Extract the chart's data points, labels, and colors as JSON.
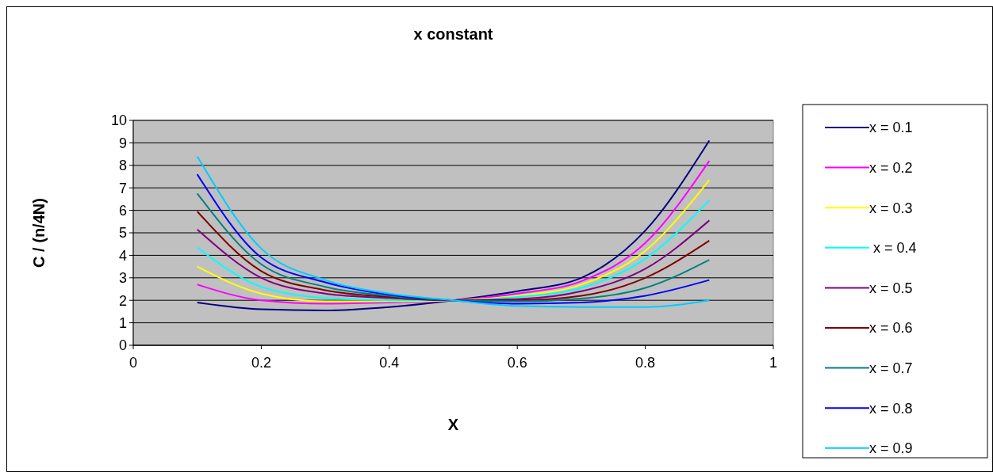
{
  "chart_data": {
    "type": "line",
    "title": "x constant",
    "xlabel": "X",
    "ylabel": "C / (n/4N)",
    "x": [
      0.1,
      0.2,
      0.3,
      0.4,
      0.5,
      0.6,
      0.7,
      0.8,
      0.9
    ],
    "xlim": [
      0,
      1
    ],
    "xticks": [
      0,
      0.2,
      0.4,
      0.6,
      0.8,
      1
    ],
    "ylim": [
      0,
      10
    ],
    "yticks": [
      0,
      1,
      2,
      3,
      4,
      5,
      6,
      7,
      8,
      9,
      10
    ],
    "grid": "y",
    "legend": "right",
    "line_style": "solid",
    "series": [
      {
        "name": "x = 0.1",
        "color": "#000080",
        "values": [
          1.9,
          1.6,
          1.55,
          1.7,
          2.0,
          2.4,
          3.0,
          5.1,
          9.1
        ]
      },
      {
        "name": "x = 0.2",
        "color": "#ff00ff",
        "values": [
          2.7,
          2.0,
          1.85,
          1.9,
          2.0,
          2.3,
          2.85,
          4.55,
          8.2
        ]
      },
      {
        "name": "x = 0.3",
        "color": "#ffff00",
        "values": [
          3.5,
          2.3,
          1.95,
          1.95,
          2.0,
          2.2,
          2.7,
          4.2,
          7.35
        ]
      },
      {
        "name": " x = 0.4",
        "color": "#00ffff",
        "values": [
          4.35,
          2.6,
          2.1,
          2.0,
          2.0,
          2.15,
          2.55,
          3.85,
          6.45
        ]
      },
      {
        "name": "x = 0.5",
        "color": "#800080",
        "values": [
          5.15,
          3.0,
          2.3,
          2.1,
          2.0,
          2.05,
          2.4,
          3.4,
          5.55
        ]
      },
      {
        "name": "x = 0.6",
        "color": "#800000",
        "values": [
          5.95,
          3.3,
          2.45,
          2.15,
          2.0,
          2.0,
          2.2,
          3.0,
          4.65
        ]
      },
      {
        "name": "x = 0.7",
        "color": "#008080",
        "values": [
          6.75,
          3.6,
          2.6,
          2.2,
          2.0,
          1.95,
          2.08,
          2.55,
          3.8
        ]
      },
      {
        "name": "x = 0.8",
        "color": "#0000ff",
        "values": [
          7.6,
          3.9,
          2.8,
          2.25,
          2.0,
          1.85,
          1.9,
          2.2,
          2.9
        ]
      },
      {
        "name": "x = 0.9",
        "color": "#00ccff",
        "values": [
          8.4,
          4.3,
          2.9,
          2.3,
          2.0,
          1.75,
          1.7,
          1.7,
          2.0
        ]
      }
    ]
  }
}
